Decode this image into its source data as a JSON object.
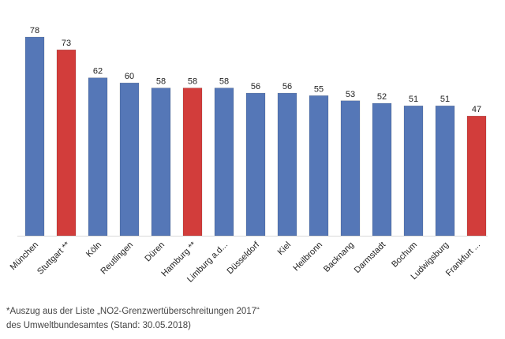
{
  "chart_data": {
    "type": "bar",
    "categories": [
      "München",
      "Stuttgart **",
      "Köln",
      "Reutlingen",
      "Düren",
      "Hamburg **",
      "Limburg a.d...",
      "Düsseldorf",
      "Kiel",
      "Heilbronn",
      "Backnang",
      "Darmstadt",
      "Bochum",
      "Ludwigsburg",
      "Frankfurt ..."
    ],
    "values": [
      78,
      73,
      62,
      60,
      58,
      58,
      58,
      56,
      56,
      55,
      53,
      52,
      51,
      51,
      47
    ],
    "highlighted": [
      false,
      true,
      false,
      false,
      false,
      true,
      false,
      false,
      false,
      false,
      false,
      false,
      false,
      false,
      true
    ],
    "colors": {
      "default": "#5577b7",
      "highlight": "#d23d3b"
    },
    "ylim": [
      0,
      78
    ],
    "grid": false,
    "data_labels": true,
    "title": "",
    "xlabel": "",
    "ylabel": ""
  },
  "footnote": {
    "line1": "*Auszug aus der Liste „NO2-Grenzwertüberschreitungen 2017“",
    "line2": "des Umweltbundesamtes (Stand: 30.05.2018)"
  }
}
